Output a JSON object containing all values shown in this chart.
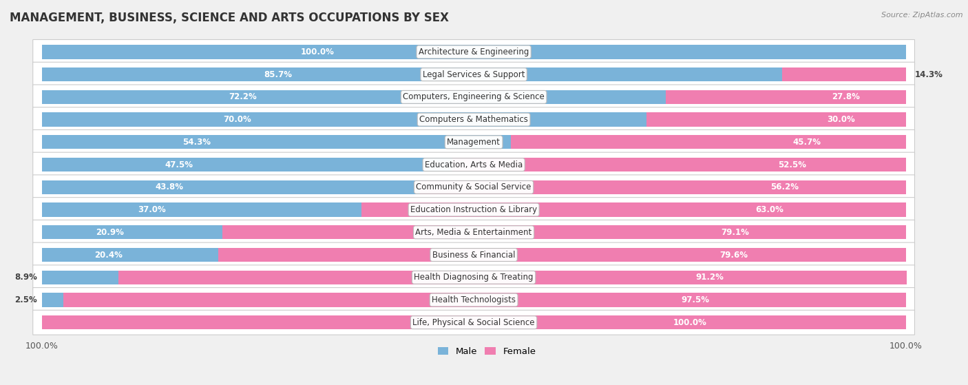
{
  "title": "MANAGEMENT, BUSINESS, SCIENCE AND ARTS OCCUPATIONS BY SEX",
  "source": "Source: ZipAtlas.com",
  "categories": [
    "Architecture & Engineering",
    "Legal Services & Support",
    "Computers, Engineering & Science",
    "Computers & Mathematics",
    "Management",
    "Education, Arts & Media",
    "Community & Social Service",
    "Education Instruction & Library",
    "Arts, Media & Entertainment",
    "Business & Financial",
    "Health Diagnosing & Treating",
    "Health Technologists",
    "Life, Physical & Social Science"
  ],
  "male_pct": [
    100.0,
    85.7,
    72.2,
    70.0,
    54.3,
    47.5,
    43.8,
    37.0,
    20.9,
    20.4,
    8.9,
    2.5,
    0.0
  ],
  "female_pct": [
    0.0,
    14.3,
    27.8,
    30.0,
    45.7,
    52.5,
    56.2,
    63.0,
    79.1,
    79.6,
    91.2,
    97.5,
    100.0
  ],
  "male_color": "#7ab3d9",
  "female_color": "#f07eb0",
  "bar_height": 0.62,
  "background_color": "#f0f0f0",
  "row_bg_color": "#ffffff",
  "row_alt_bg_color": "#f8f8f8",
  "title_fontsize": 12,
  "label_fontsize": 8.5,
  "pct_fontsize": 8.5,
  "legend_fontsize": 9.5
}
